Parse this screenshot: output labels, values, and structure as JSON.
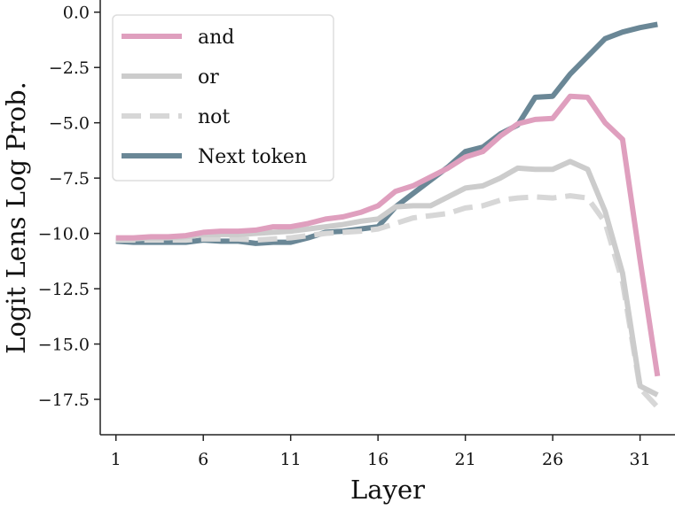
{
  "chart_data": {
    "type": "line",
    "xlabel": "Layer",
    "ylabel": "Logit Lens Log Prob.",
    "xlim": [
      0.1,
      33
    ],
    "ylim": [
      -19.1,
      0.55
    ],
    "x_ticks": [
      1,
      6,
      11,
      16,
      21,
      26,
      31
    ],
    "y_ticks": [
      0.0,
      -2.5,
      -5.0,
      -7.5,
      -10.0,
      -12.5,
      -15.0,
      -17.5
    ],
    "x_tick_labels": [
      "1",
      "6",
      "11",
      "16",
      "21",
      "26",
      "31"
    ],
    "y_tick_labels": [
      "0.0",
      "−2.5",
      "−5.0",
      "−7.5",
      "−10.0",
      "−12.5",
      "−15.0",
      "−17.5"
    ],
    "grid": false,
    "legend_position": "top-left",
    "x": [
      1,
      2,
      3,
      4,
      5,
      6,
      7,
      8,
      9,
      10,
      11,
      12,
      13,
      14,
      15,
      16,
      17,
      18,
      19,
      20,
      21,
      22,
      23,
      24,
      25,
      26,
      27,
      28,
      29,
      30,
      31,
      32
    ],
    "series": [
      {
        "name": "Next token",
        "color": "#6a8796",
        "dash": "solid",
        "values": [
          -10.35,
          -10.4,
          -10.4,
          -10.4,
          -10.4,
          -10.3,
          -10.35,
          -10.35,
          -10.45,
          -10.4,
          -10.4,
          -10.2,
          -9.95,
          -9.9,
          -9.8,
          -9.7,
          -8.8,
          -8.2,
          -7.6,
          -7.0,
          -6.3,
          -6.1,
          -5.5,
          -5.1,
          -3.85,
          -3.8,
          -2.8,
          -2.0,
          -1.2,
          -0.9,
          -0.7,
          -0.55
        ]
      },
      {
        "name": "not",
        "color": "#d7d7d7",
        "dash": "dashed",
        "values": [
          -10.3,
          -10.3,
          -10.3,
          -10.3,
          -10.3,
          -10.25,
          -10.25,
          -10.25,
          -10.3,
          -10.25,
          -10.2,
          -10.1,
          -10.0,
          -9.95,
          -9.9,
          -9.8,
          -9.55,
          -9.3,
          -9.2,
          -9.1,
          -8.85,
          -8.75,
          -8.5,
          -8.4,
          -8.35,
          -8.4,
          -8.3,
          -8.4,
          -9.5,
          -12.2,
          -17.0,
          -17.85
        ]
      },
      {
        "name": "or",
        "color": "#cccccc",
        "dash": "solid",
        "values": [
          -10.25,
          -10.25,
          -10.2,
          -10.2,
          -10.15,
          -10.05,
          -10.05,
          -10.05,
          -10.0,
          -9.95,
          -9.9,
          -9.8,
          -9.7,
          -9.6,
          -9.45,
          -9.35,
          -8.8,
          -8.75,
          -8.75,
          -8.35,
          -7.95,
          -7.85,
          -7.5,
          -7.05,
          -7.1,
          -7.1,
          -6.75,
          -7.1,
          -9.0,
          -11.8,
          -16.9,
          -17.3
        ]
      },
      {
        "name": "and",
        "color": "#df9fbe",
        "dash": "solid",
        "values": [
          -10.2,
          -10.2,
          -10.15,
          -10.15,
          -10.1,
          -9.95,
          -9.9,
          -9.9,
          -9.85,
          -9.7,
          -9.7,
          -9.55,
          -9.35,
          -9.25,
          -9.05,
          -8.75,
          -8.1,
          -7.85,
          -7.45,
          -7.05,
          -6.55,
          -6.3,
          -5.6,
          -5.05,
          -4.85,
          -4.8,
          -3.8,
          -3.85,
          -5.0,
          -5.75,
          -11.2,
          -16.45
        ]
      }
    ],
    "legend": [
      {
        "name": "and",
        "color": "#df9fbe",
        "dash": "solid"
      },
      {
        "name": "or",
        "color": "#cccccc",
        "dash": "solid"
      },
      {
        "name": "not",
        "color": "#d7d7d7",
        "dash": "dashed"
      },
      {
        "name": "Next token",
        "color": "#6a8796",
        "dash": "solid"
      }
    ]
  }
}
